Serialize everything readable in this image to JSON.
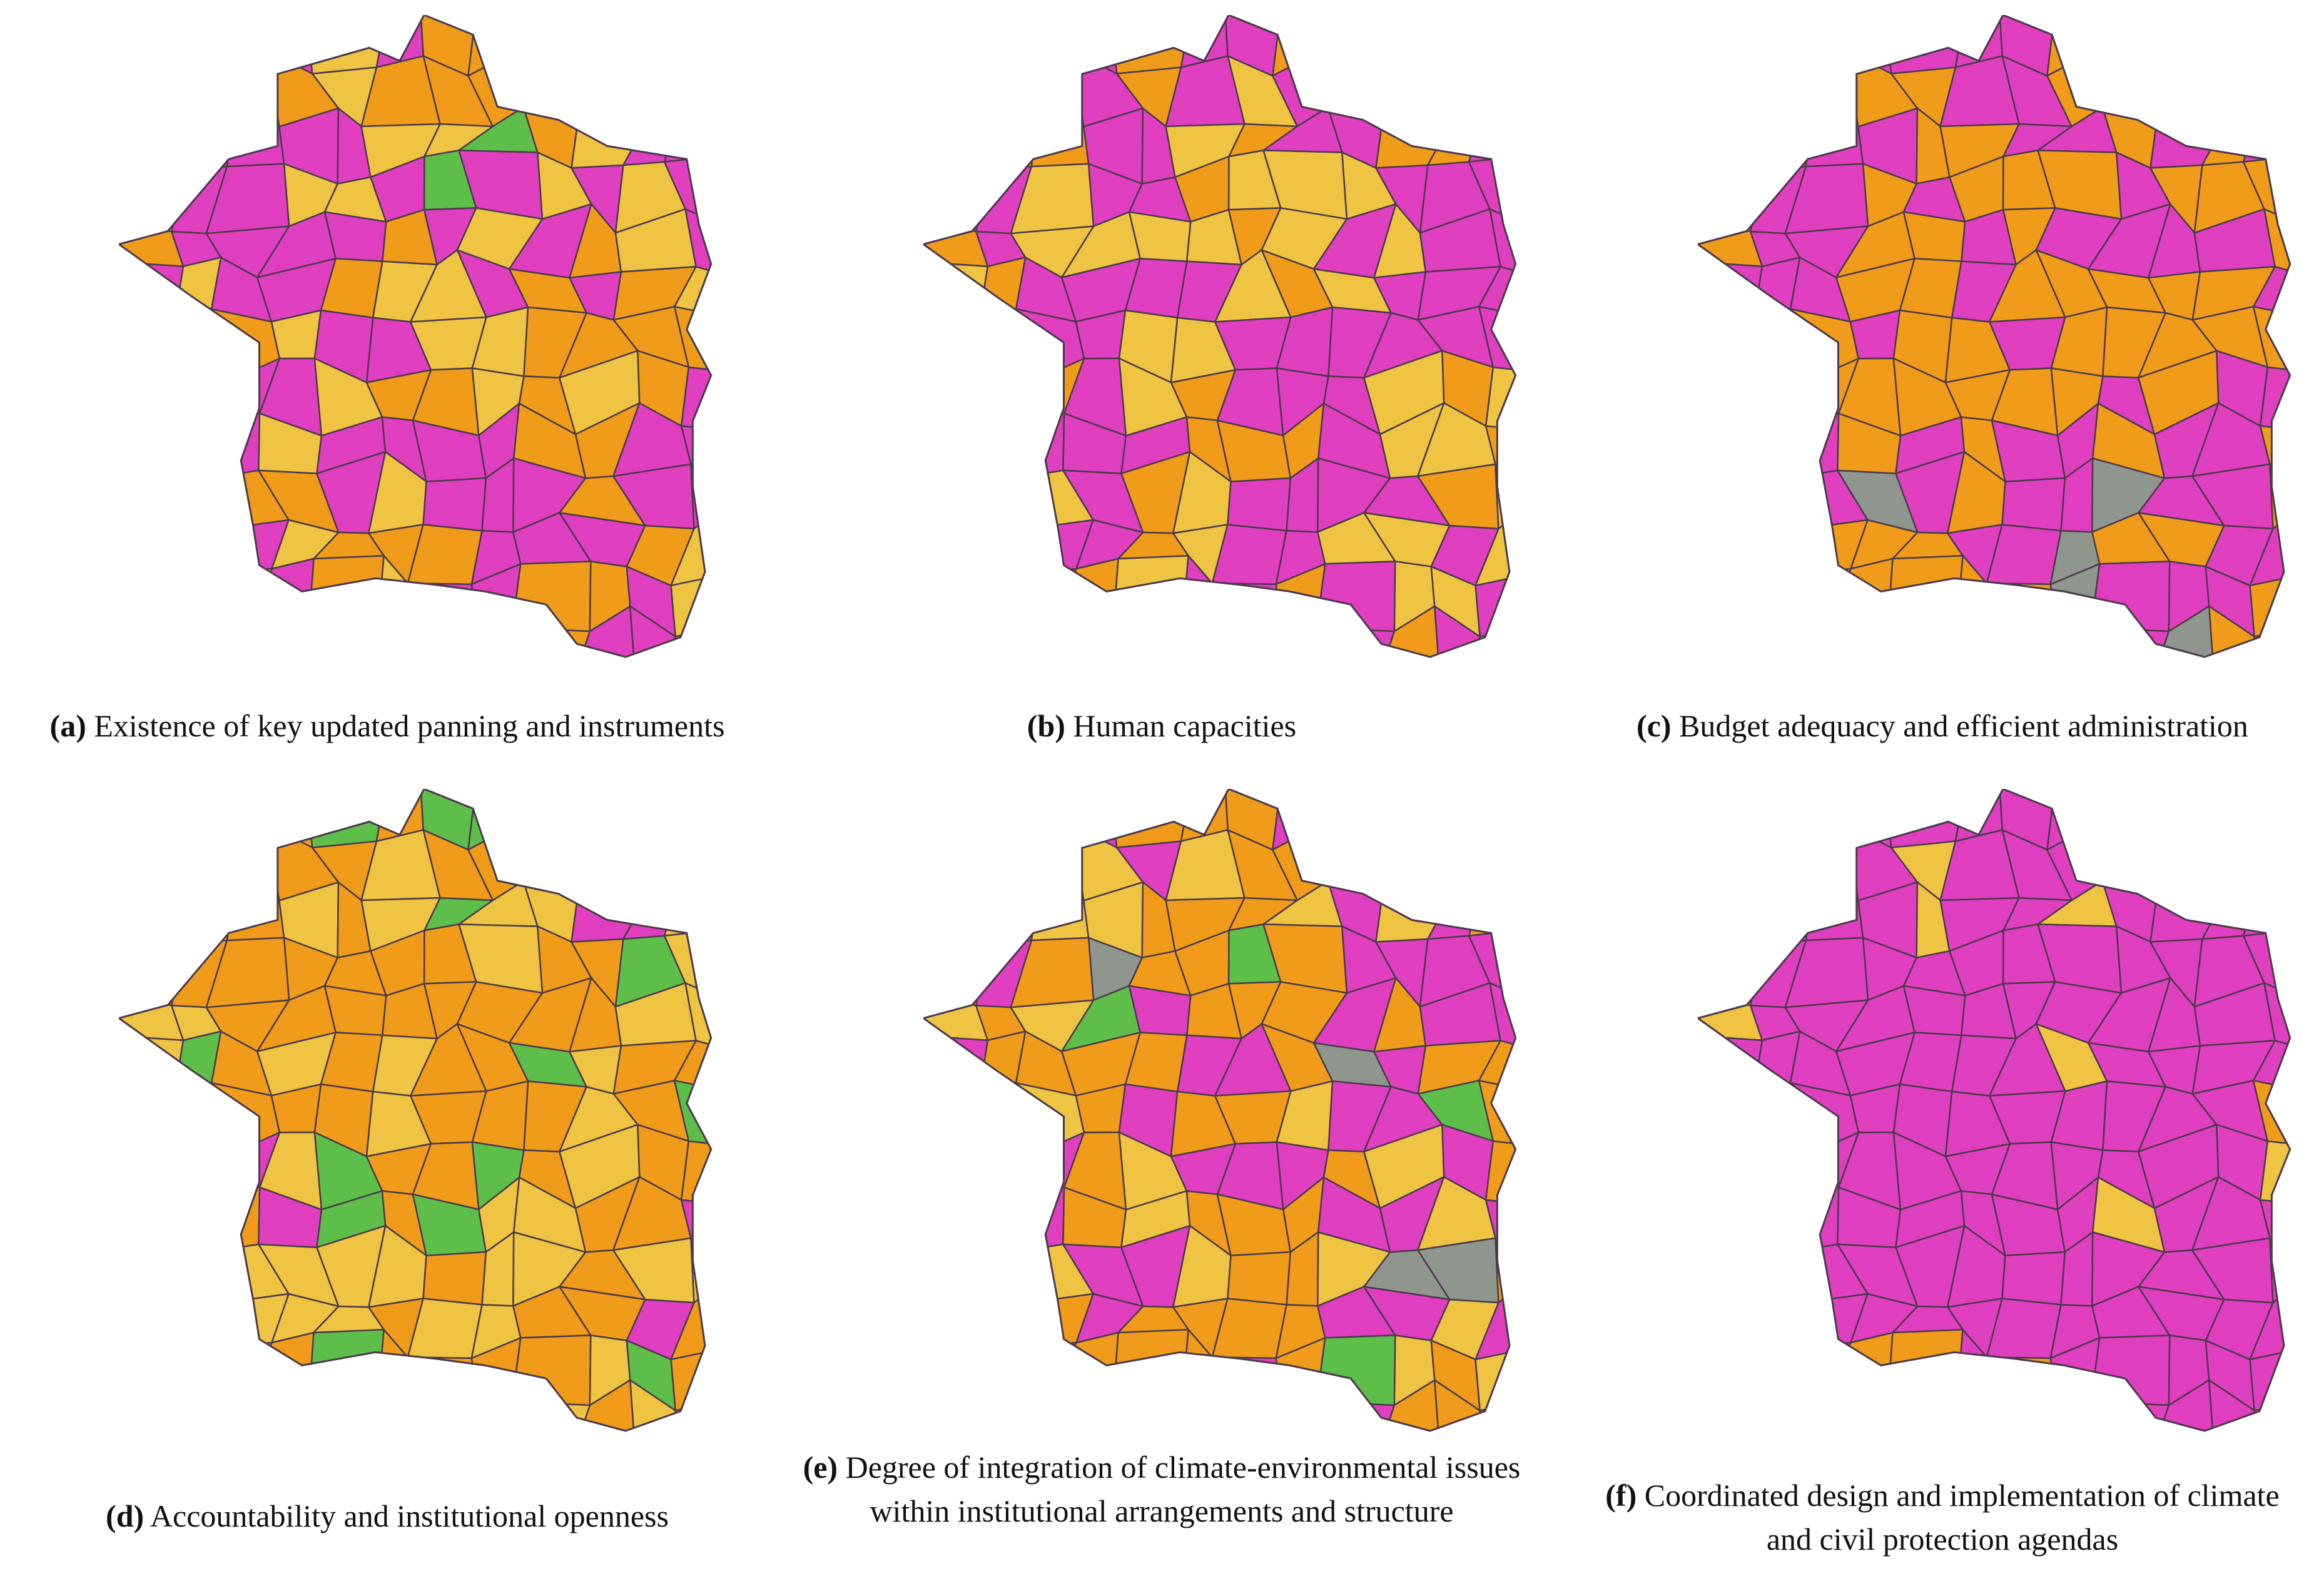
{
  "panels": [
    {
      "label": "(a)",
      "caption": "Existence of key updated panning and instruments"
    },
    {
      "label": "(b)",
      "caption": "Human capacities"
    },
    {
      "label": "(c)",
      "caption": "Budget adequacy and efficient administration"
    },
    {
      "label": "(d)",
      "caption": "Accountability and institutional openness"
    },
    {
      "label": "(e)",
      "caption": "Degree of integration of climate-environmental issues within institutional arrangements and structure"
    },
    {
      "label": "(f)",
      "caption": "Coordinated design and implementation of climate and civil protection agendas"
    }
  ]
}
